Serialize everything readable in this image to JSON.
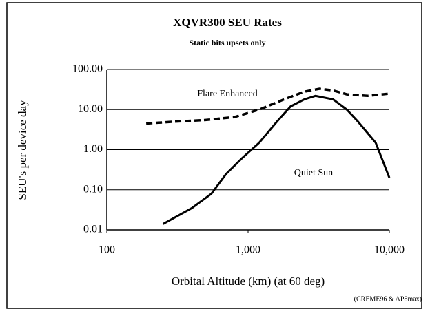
{
  "chart_data": {
    "type": "line",
    "title": "XQVR300 SEU Rates",
    "subtitle": "Static bits upsets only",
    "x_label": "Orbital Altitude (km) (at 60 deg)",
    "y_label": "SEU's per device day",
    "source": "(CREME96 & AP8max)",
    "xscale": "log",
    "yscale": "log",
    "grid": true,
    "xlim": [
      100,
      10000
    ],
    "xticks": [
      100,
      {
        "value": 1000,
        "label": "1,000"
      },
      {
        "value": 10000,
        "label": "10,000"
      }
    ],
    "ylim": [
      0.01,
      100
    ],
    "yticks": [
      {
        "value": 0.01,
        "label": "0.01"
      },
      {
        "value": 0.1,
        "label": "0.10"
      },
      {
        "value": 1,
        "label": "1.00"
      },
      {
        "value": 10,
        "label": "10.00"
      },
      {
        "value": 100,
        "label": "100.00"
      }
    ],
    "series": [
      {
        "name": "Flare Enhanced",
        "color": "#000000",
        "dash": true,
        "x": [
          190,
          300,
          500,
          800,
          1200,
          1800,
          2500,
          3200,
          4000,
          5000,
          7000,
          10000
        ],
        "values": [
          4.5,
          5,
          5.5,
          6.5,
          10,
          18,
          28,
          33,
          30,
          24,
          22,
          25
        ]
      },
      {
        "name": "Quiet Sun",
        "color": "#000000",
        "dash": false,
        "x": [
          250,
          300,
          400,
          550,
          700,
          900,
          1200,
          1600,
          2000,
          2500,
          3000,
          4000,
          5000,
          6000,
          8000,
          10000
        ],
        "values": [
          0.014,
          0.02,
          0.035,
          0.08,
          0.25,
          0.6,
          1.5,
          5,
          12,
          18,
          22,
          18,
          10,
          5,
          1.5,
          0.2
        ]
      }
    ]
  }
}
